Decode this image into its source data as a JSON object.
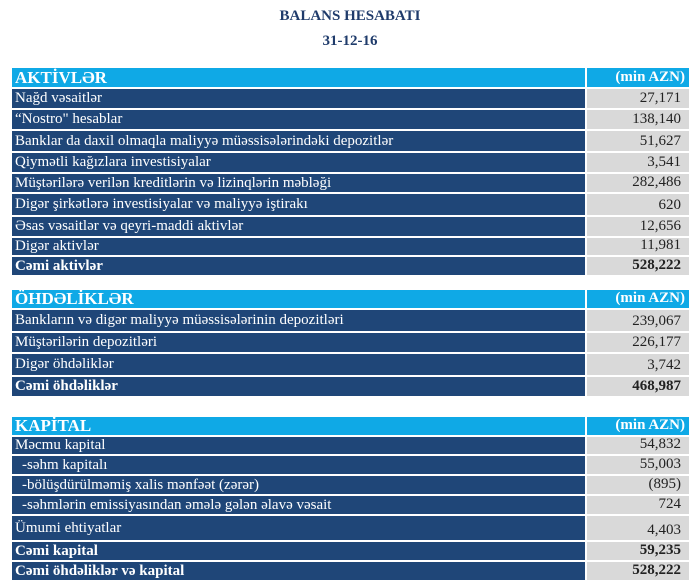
{
  "title": "BALANS HESABATI",
  "date": "31-12-16",
  "sections": [
    {
      "header": "AKTİVLƏR",
      "unit": "(min AZN)",
      "rows": [
        {
          "label": "Nağd vəsaitlər",
          "value": "27,171"
        },
        {
          "label": "“Nostro\" hesablar",
          "value": "138,140"
        },
        {
          "label": "Banklar da daxil olmaqla maliyyə müəssisələrindəki depozitlər",
          "value": "51,627"
        },
        {
          "label": "Qiymətli kağızlara investisiyalar",
          "value": "3,541"
        },
        {
          "label": "Müştərilərə verilən kreditlərin və lizinqlərin məbləği",
          "value": "282,486"
        },
        {
          "label": "Digər  şirkətlərə  investisiyalar və maliyyə iştirakı",
          "value": "620"
        },
        {
          "label": "Əsas vəsaitlər və qeyri-maddi aktivlər",
          "value": "12,656"
        },
        {
          "label": "Digər aktivlər",
          "value": "11,981"
        },
        {
          "label": "Cəmi aktivlər",
          "value": "528,222"
        }
      ]
    },
    {
      "header": "ÖHDƏLİKLƏR",
      "unit": "(min AZN)",
      "rows": [
        {
          "label": "Bankların və digər maliyyə müəssisələrinin depozitləri",
          "value": "239,067"
        },
        {
          "label": "Müştərilərin depozitləri",
          "value": "226,177"
        },
        {
          "label": "Digər öhdəliklər",
          "value": "3,742"
        },
        {
          "label": "Cəmi öhdəliklər",
          "value": "468,987"
        }
      ]
    },
    {
      "header": "KAPİTAL",
      "unit": "(min AZN)",
      "rows": [
        {
          "label": "Məcmu kapital",
          "value": "54,832"
        },
        {
          "label": "-səhm kapitalı",
          "value": "55,003"
        },
        {
          "label": "-bölüşdürülməmiş xalis mənfəət (zərər)",
          "value": "(895)"
        },
        {
          "label": "-səhmlərin emissiyasından əmələ gələn əlavə vəsait",
          "value": "724"
        },
        {
          "label": "Ümumi ehtiyatlar",
          "value": "4,403"
        },
        {
          "label": "Cəmi kapital",
          "value": "59,235"
        },
        {
          "label": "Cəmi öhdəliklər və kapital",
          "value": "528,222"
        }
      ]
    }
  ]
}
